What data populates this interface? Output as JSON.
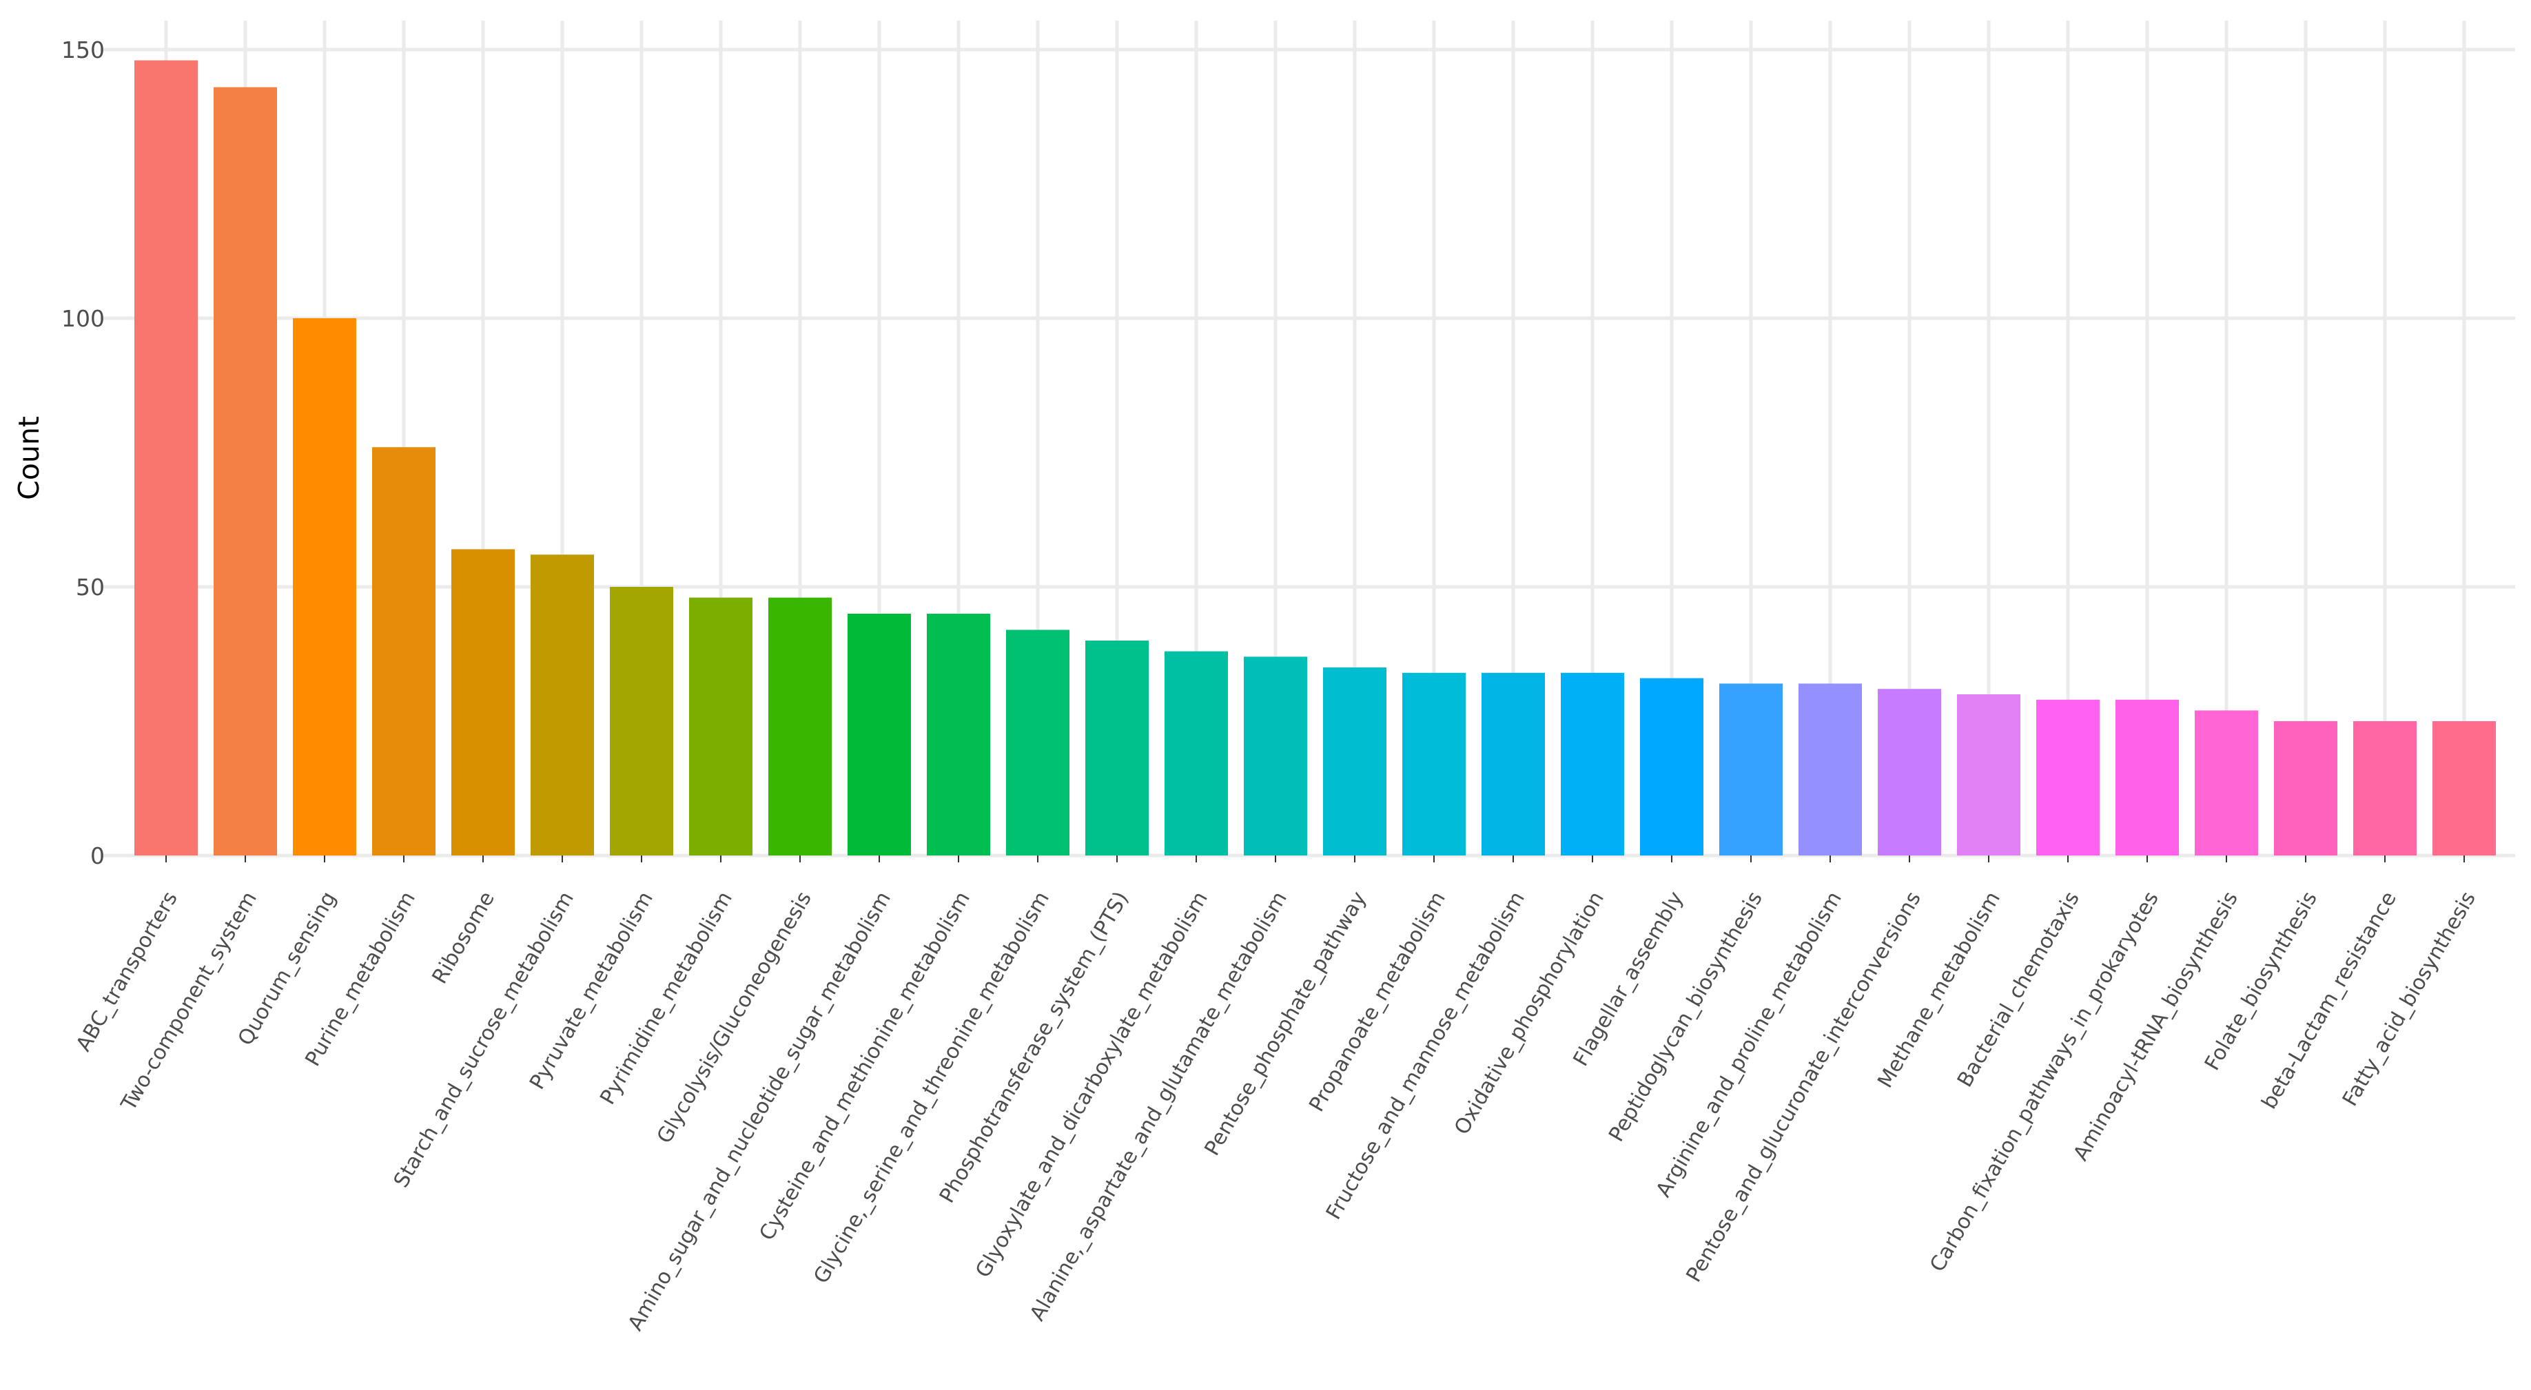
{
  "chart_data": {
    "type": "bar",
    "title": "",
    "xlabel": "",
    "ylabel": "Count",
    "ylim": [
      0,
      150
    ],
    "yticks": [
      0,
      50,
      100,
      150
    ],
    "grid": true,
    "legend": "none",
    "categories": [
      "ABC_transporters",
      "Two-component_system",
      "Quorum_sensing",
      "Purine_metabolism",
      "Ribosome",
      "Starch_and_sucrose_metabolism",
      "Pyruvate_metabolism",
      "Pyrimidine_metabolism",
      "Glycolysis/Gluconeogenesis",
      "Amino_sugar_and_nucleotide_sugar_metabolism",
      "Cysteine_and_methionine_metabolism",
      "Glycine,_serine_and_threonine_metabolism",
      "Phosphotransferase_system_(PTS)",
      "Glyoxylate_and_dicarboxylate_metabolism",
      "Alanine,_aspartate_and_glutamate_metabolism",
      "Pentose_phosphate_pathway",
      "Propanoate_metabolism",
      "Fructose_and_mannose_metabolism",
      "Oxidative_phosphorylation",
      "Flagellar_assembly",
      "Peptidoglycan_biosynthesis",
      "Arginine_and_proline_metabolism",
      "Pentose_and_glucuronate_interconversions",
      "Methane_metabolism",
      "Bacterial_chemotaxis",
      "Carbon_fixation_pathways_in_prokaryotes",
      "Aminoacyl-tRNA_biosynthesis",
      "Folate_biosynthesis",
      "beta-Lactam_resistance",
      "Fatty_acid_biosynthesis"
    ],
    "values": [
      148,
      143,
      100,
      76,
      57,
      56,
      50,
      48,
      48,
      45,
      45,
      42,
      40,
      38,
      37,
      35,
      34,
      34,
      34,
      33,
      32,
      32,
      31,
      30,
      29,
      29,
      27,
      25,
      25,
      25
    ],
    "colors": [
      "#F8766D",
      "#F48143",
      "#FF8C00",
      "#E68C0A",
      "#D89000",
      "#C09B00",
      "#A3A500",
      "#7CAE00",
      "#39B600",
      "#00BA38",
      "#00BF50",
      "#00C071",
      "#00C08B",
      "#00C0A3",
      "#00BFB9",
      "#00BDD0",
      "#00BCD8",
      "#00B5E6",
      "#00B0F6",
      "#00A9FF",
      "#35A2FF",
      "#9590FF",
      "#C77CFF",
      "#E281F5",
      "#FF61F2",
      "#FF61E8",
      "#FF64D4",
      "#FF62BC",
      "#FF67A4",
      "#FF6C8C"
    ]
  }
}
